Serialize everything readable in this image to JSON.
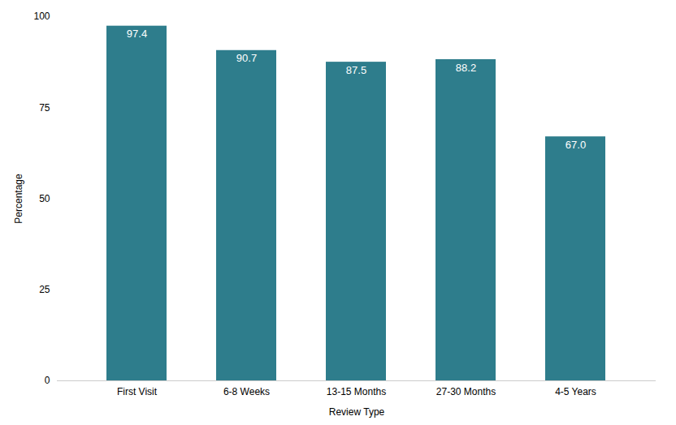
{
  "chart_data": {
    "type": "bar",
    "categories": [
      "First Visit",
      "6-8 Weeks",
      "13-15 Months",
      "27-30 Months",
      "4-5 Years"
    ],
    "values": [
      97.4,
      90.7,
      87.5,
      88.2,
      67.0
    ],
    "value_labels": [
      "97.4",
      "90.7",
      "87.5",
      "88.2",
      "67.0"
    ],
    "data_labels": true,
    "color": "#2e7d8c",
    "xlabel": "Review Type",
    "ylabel": "Percentage",
    "ylim": [
      0,
      100
    ],
    "yticks": [
      0,
      25,
      50,
      75,
      100
    ],
    "grid": false
  }
}
